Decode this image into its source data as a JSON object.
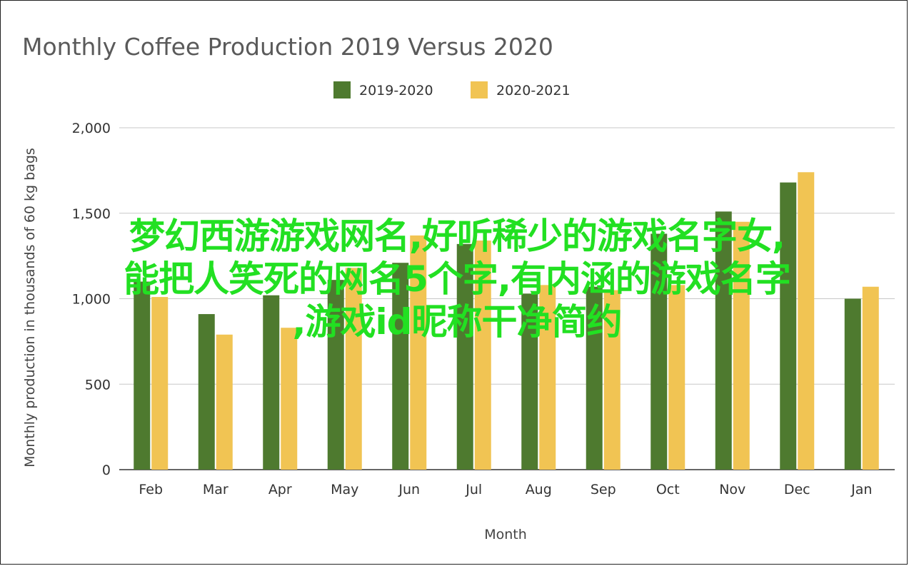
{
  "chart_data": {
    "type": "bar",
    "title": "Monthly Coffee Production 2019 Versus 2020",
    "xlabel": "Month",
    "ylabel": "Monthly production in thousands of 60 kg bags",
    "categories": [
      "Feb",
      "Mar",
      "Apr",
      "May",
      "Jun",
      "Jul",
      "Aug",
      "Sep",
      "Oct",
      "Nov",
      "Dec",
      "Jan"
    ],
    "series": [
      {
        "name": "2019-2020",
        "color": "#4e7a2f",
        "values": [
          1100,
          910,
          1020,
          1110,
          1210,
          1320,
          1030,
          1070,
          1380,
          1510,
          1680,
          1000
        ]
      },
      {
        "name": "2020-2021",
        "color": "#f1c453",
        "values": [
          1010,
          790,
          830,
          1180,
          1370,
          1340,
          1080,
          1050,
          1080,
          1450,
          1740,
          1070
        ]
      }
    ],
    "ylim": [
      0,
      2000
    ],
    "yticks": [
      0,
      500,
      1000,
      1500,
      2000
    ],
    "ytick_labels": [
      "0",
      "500",
      "1,000",
      "1,500",
      "2,000"
    ],
    "grid": true,
    "legend_position": "top-center"
  },
  "overlay_text": {
    "line1": "梦幻西游游戏网名,好听稀少的游戏名字女,",
    "line2": "能把人笑死的网名5个字,有内涵的游戏名字",
    "line3": ",游戏id昵称干净简约"
  }
}
